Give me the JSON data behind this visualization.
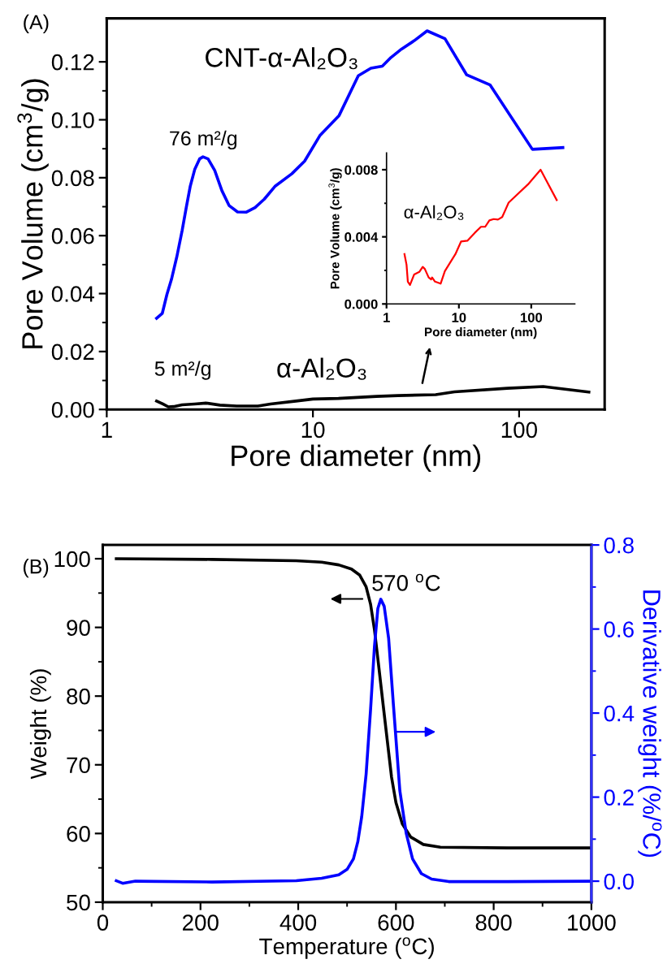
{
  "chart_data": [
    {
      "type": "line",
      "xlabel": "Pore diameter (nm)",
      "ylabel": "Pore Volume (cm$^{3}$/g)",
      "log": "x",
      "xlim": [
        1,
        260
      ],
      "xticks": [
        1,
        10,
        100
      ],
      "ylim": [
        0,
        0.135
      ],
      "yticks": [
        {
          "value": 0,
          "label": "0.00"
        },
        {
          "value": 0.02,
          "label": "0.02"
        },
        {
          "value": 0.04,
          "label": "0.04"
        },
        {
          "value": 0.06,
          "label": "0.06"
        },
        {
          "value": 0.08,
          "label": "0.08"
        },
        {
          "value": 0.1,
          "label": "0.10"
        },
        {
          "value": 0.12,
          "label": "0.12"
        }
      ],
      "annotations": [
        "(A)",
        "CNT-α-Al₂O₃",
        "76 m²/g",
        "5 m²/g",
        "α-Al₂O₃"
      ],
      "series": [
        {
          "color": "#0000ff",
          "x": [
            1.745,
            1.86,
            1.96,
            2.06,
            2.19,
            2.32,
            2.43,
            2.54,
            2.67,
            2.82,
            2.93,
            3.1,
            3.34,
            3.62,
            3.92,
            4.31,
            4.74,
            5.24,
            5.81,
            6.54,
            7.91,
            9.11,
            10.8,
            13.4,
            16.6,
            19.1,
            21.7,
            23.9,
            26.9,
            31.0,
            35.8,
            43.7,
            55.7,
            72.4,
            116,
            163
          ],
          "values": [
            0.0315,
            0.0332,
            0.0398,
            0.0449,
            0.0529,
            0.0617,
            0.0697,
            0.077,
            0.0828,
            0.0865,
            0.0872,
            0.0865,
            0.0825,
            0.0755,
            0.0704,
            0.0682,
            0.0681,
            0.0697,
            0.0726,
            0.077,
            0.0814,
            0.0857,
            0.0945,
            0.1015,
            0.1152,
            0.1178,
            0.1185,
            0.1215,
            0.1244,
            0.1273,
            0.1307,
            0.128,
            0.1155,
            0.112,
            0.0898,
            0.0904
          ]
        },
        {
          "color": "#000000",
          "x": [
            1.745,
            1.87,
            1.99,
            2.11,
            2.32,
            2.67,
            3.03,
            3.54,
            4.27,
            5.41,
            6.23,
            8.27,
            10.0,
            13.3,
            20.3,
            25.8,
            39.4,
            48.6,
            87.6,
            131,
            218
          ],
          "values": [
            0.0029,
            0.0019,
            0.0009,
            0.001,
            0.0016,
            0.0019,
            0.0022,
            0.0015,
            0.0012,
            0.0012,
            0.0019,
            0.0029,
            0.0036,
            0.0038,
            0.0045,
            0.0048,
            0.0051,
            0.0061,
            0.0073,
            0.0079,
            0.006
          ]
        }
      ]
    },
    {
      "type": "line",
      "xlabel": "Pore diameter (nm)",
      "ylabel": "Pore Volume (cm$^{3}$/g)",
      "log": "x",
      "xlim": [
        1,
        400
      ],
      "xticks": [
        1,
        10,
        100
      ],
      "ylim": [
        0,
        0.009
      ],
      "yticks": [
        {
          "value": 0,
          "label": "0.000"
        },
        {
          "value": 0.004,
          "label": "0.004"
        },
        {
          "value": 0.008,
          "label": "0.008"
        }
      ],
      "annotations": [
        "α-Al₂O₃"
      ],
      "series": [
        {
          "color": "#ff0000",
          "x": [
            1.77,
            1.89,
            1.97,
            2.11,
            2.41,
            2.84,
            3.16,
            3.38,
            3.82,
            4.14,
            4.26,
            4.68,
            5.59,
            6.4,
            8.95,
            10.7,
            13.1,
            16.5,
            20.2,
            23.1,
            26.4,
            30.3,
            34.7,
            39.7,
            48.7,
            89.9,
            134.6,
            225
          ],
          "values": [
            0.00297,
            0.00234,
            0.00133,
            0.00113,
            0.00176,
            0.00191,
            0.00221,
            0.00209,
            0.00158,
            0.00146,
            0.00158,
            0.00133,
            0.00121,
            0.00196,
            0.00297,
            0.00372,
            0.00377,
            0.00423,
            0.0046,
            0.0046,
            0.00498,
            0.00506,
            0.00503,
            0.00518,
            0.00604,
            0.00712,
            0.008,
            0.00619
          ]
        }
      ]
    },
    {
      "type": "line",
      "xlabel": "Temperature ($^{o}$C)",
      "ylabel": "Weight (%)",
      "y2label": "Derivative weight (%/$^{o}$C)",
      "xlim": [
        0,
        1000
      ],
      "xticks": [
        0,
        200,
        400,
        600,
        800,
        1000
      ],
      "ylim": [
        50,
        102
      ],
      "yticks": [
        50,
        60,
        70,
        80,
        90,
        100
      ],
      "y2lim": [
        -0.05,
        0.8
      ],
      "y2ticks": [
        {
          "value": 0,
          "label": "0.0"
        },
        0.2,
        0.4,
        0.6,
        0.8
      ],
      "annotations": [
        "(B)",
        "570 $^{o}$C"
      ],
      "series": [
        {
          "color": "#000000",
          "x": [
            27.7,
            223,
            396,
            448,
            483,
            509,
            526,
            539,
            548,
            556,
            565,
            574,
            582,
            591,
            600,
            613,
            630,
            656,
            691,
            829,
            1000
          ],
          "values": [
            100,
            99.9,
            99.7,
            99.5,
            99.1,
            98.5,
            97.6,
            95.9,
            93.4,
            89.7,
            84.2,
            78.6,
            73.7,
            68.2,
            64.5,
            61.4,
            59.5,
            58.4,
            58.0,
            57.9,
            57.9
          ]
        },
        {
          "color": "#0000ff",
          "axis": "y2",
          "x": [
            27.7,
            40.7,
            66.7,
            223,
            396,
            448,
            483,
            500,
            513,
            522,
            530,
            539,
            548,
            556,
            563,
            569,
            576,
            585,
            595,
            608,
            621,
            634,
            652,
            673,
            708,
            829,
            1000
          ],
          "values": [
            0.001,
            -0.005,
            0.0,
            -0.002,
            0.001,
            0.007,
            0.015,
            0.028,
            0.053,
            0.094,
            0.154,
            0.255,
            0.407,
            0.558,
            0.649,
            0.671,
            0.654,
            0.578,
            0.417,
            0.215,
            0.114,
            0.053,
            0.018,
            0.005,
            -0.001,
            -0.001,
            0.0
          ]
        }
      ]
    }
  ]
}
